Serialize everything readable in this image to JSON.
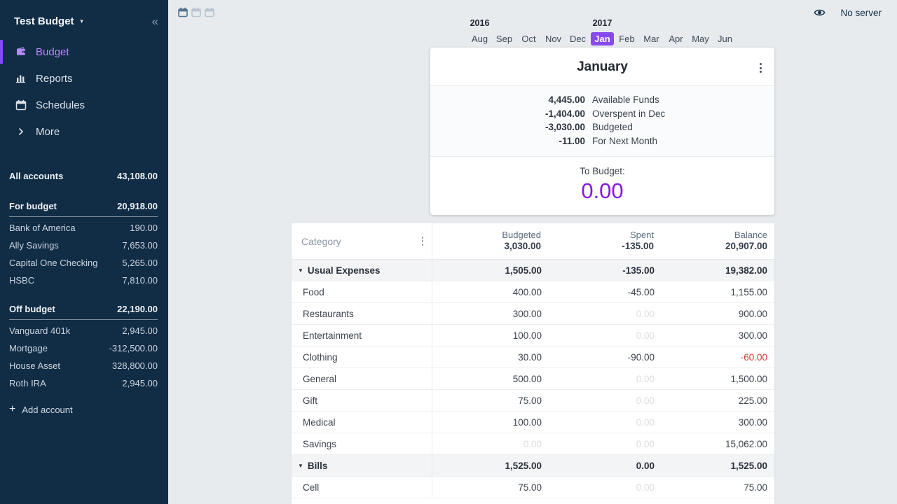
{
  "colors": {
    "sidebar_bg": "#112c45",
    "accent": "#8749f0",
    "to_budget": "#8719e0",
    "negative": "#d03a3a",
    "faint": "#dadde0",
    "main_bg": "#e8ebee"
  },
  "sidebar": {
    "title": "Test Budget",
    "nav": [
      {
        "label": "Budget",
        "icon": "wallet-icon",
        "active": true
      },
      {
        "label": "Reports",
        "icon": "bar-chart-icon",
        "active": false
      },
      {
        "label": "Schedules",
        "icon": "calendar-icon",
        "active": false
      },
      {
        "label": "More",
        "icon": "chevron-right-icon",
        "active": false
      }
    ],
    "all_accounts": {
      "label": "All accounts",
      "value": "43,108.00"
    },
    "groups": [
      {
        "label": "For budget",
        "value": "20,918.00",
        "accounts": [
          {
            "name": "Bank of America",
            "value": "190.00"
          },
          {
            "name": "Ally Savings",
            "value": "7,653.00"
          },
          {
            "name": "Capital One Checking",
            "value": "5,265.00"
          },
          {
            "name": "HSBC",
            "value": "7,810.00"
          }
        ]
      },
      {
        "label": "Off budget",
        "value": "22,190.00",
        "accounts": [
          {
            "name": "Vanguard 401k",
            "value": "2,945.00"
          },
          {
            "name": "Mortgage",
            "value": "-312,500.00"
          },
          {
            "name": "House Asset",
            "value": "328,800.00"
          },
          {
            "name": "Roth IRA",
            "value": "2,945.00"
          }
        ]
      }
    ],
    "add_account_label": "Add account"
  },
  "topbar": {
    "view_toggles": [
      {
        "name": "one-month-view",
        "active": true
      },
      {
        "name": "two-month-view",
        "active": false
      },
      {
        "name": "three-month-view",
        "active": false
      }
    ],
    "server_status": "No server"
  },
  "month_nav": {
    "months": [
      "Aug",
      "Sep",
      "Oct",
      "Nov",
      "Dec",
      "Jan",
      "Feb",
      "Mar",
      "Apr",
      "May",
      "Jun"
    ],
    "selected_index": 5,
    "years": [
      {
        "label": "2016",
        "month_index": 0
      },
      {
        "label": "2017",
        "month_index": 5
      }
    ]
  },
  "month_card": {
    "title": "January",
    "summary": [
      {
        "amount": "4,445.00",
        "label": "Available Funds"
      },
      {
        "amount": "-1,404.00",
        "label": "Overspent in Dec"
      },
      {
        "amount": "-3,030.00",
        "label": "Budgeted"
      },
      {
        "amount": "-11.00",
        "label": "For Next Month"
      }
    ],
    "to_budget_label": "To Budget:",
    "to_budget_value": "0.00"
  },
  "budget_table": {
    "category_header": "Category",
    "columns": [
      {
        "label": "Budgeted",
        "total": "3,030.00"
      },
      {
        "label": "Spent",
        "total": "-135.00"
      },
      {
        "label": "Balance",
        "total": "20,907.00"
      }
    ],
    "rows": [
      {
        "type": "group",
        "name": "Usual Expenses",
        "budgeted": "1,505.00",
        "spent": "-135.00",
        "balance": "19,382.00"
      },
      {
        "type": "item",
        "name": "Food",
        "budgeted": "400.00",
        "spent": "-45.00",
        "balance": "1,155.00"
      },
      {
        "type": "item",
        "name": "Restaurants",
        "budgeted": "300.00",
        "spent": "0.00",
        "spent_faint": true,
        "balance": "900.00"
      },
      {
        "type": "item",
        "name": "Entertainment",
        "budgeted": "100.00",
        "spent": "0.00",
        "spent_faint": true,
        "balance": "300.00"
      },
      {
        "type": "item",
        "name": "Clothing",
        "budgeted": "30.00",
        "spent": "-90.00",
        "balance": "-60.00",
        "balance_negative": true
      },
      {
        "type": "item",
        "name": "General",
        "budgeted": "500.00",
        "spent": "0.00",
        "spent_faint": true,
        "balance": "1,500.00"
      },
      {
        "type": "item",
        "name": "Gift",
        "budgeted": "75.00",
        "spent": "0.00",
        "spent_faint": true,
        "balance": "225.00"
      },
      {
        "type": "item",
        "name": "Medical",
        "budgeted": "100.00",
        "spent": "0.00",
        "spent_faint": true,
        "balance": "300.00"
      },
      {
        "type": "item",
        "name": "Savings",
        "budgeted": "0.00",
        "budgeted_faint": true,
        "spent": "0.00",
        "spent_faint": true,
        "balance": "15,062.00"
      },
      {
        "type": "group",
        "name": "Bills",
        "budgeted": "1,525.00",
        "spent": "0.00",
        "balance": "1,525.00"
      },
      {
        "type": "item",
        "name": "Cell",
        "budgeted": "75.00",
        "spent": "0.00",
        "spent_faint": true,
        "balance": "75.00"
      }
    ]
  }
}
